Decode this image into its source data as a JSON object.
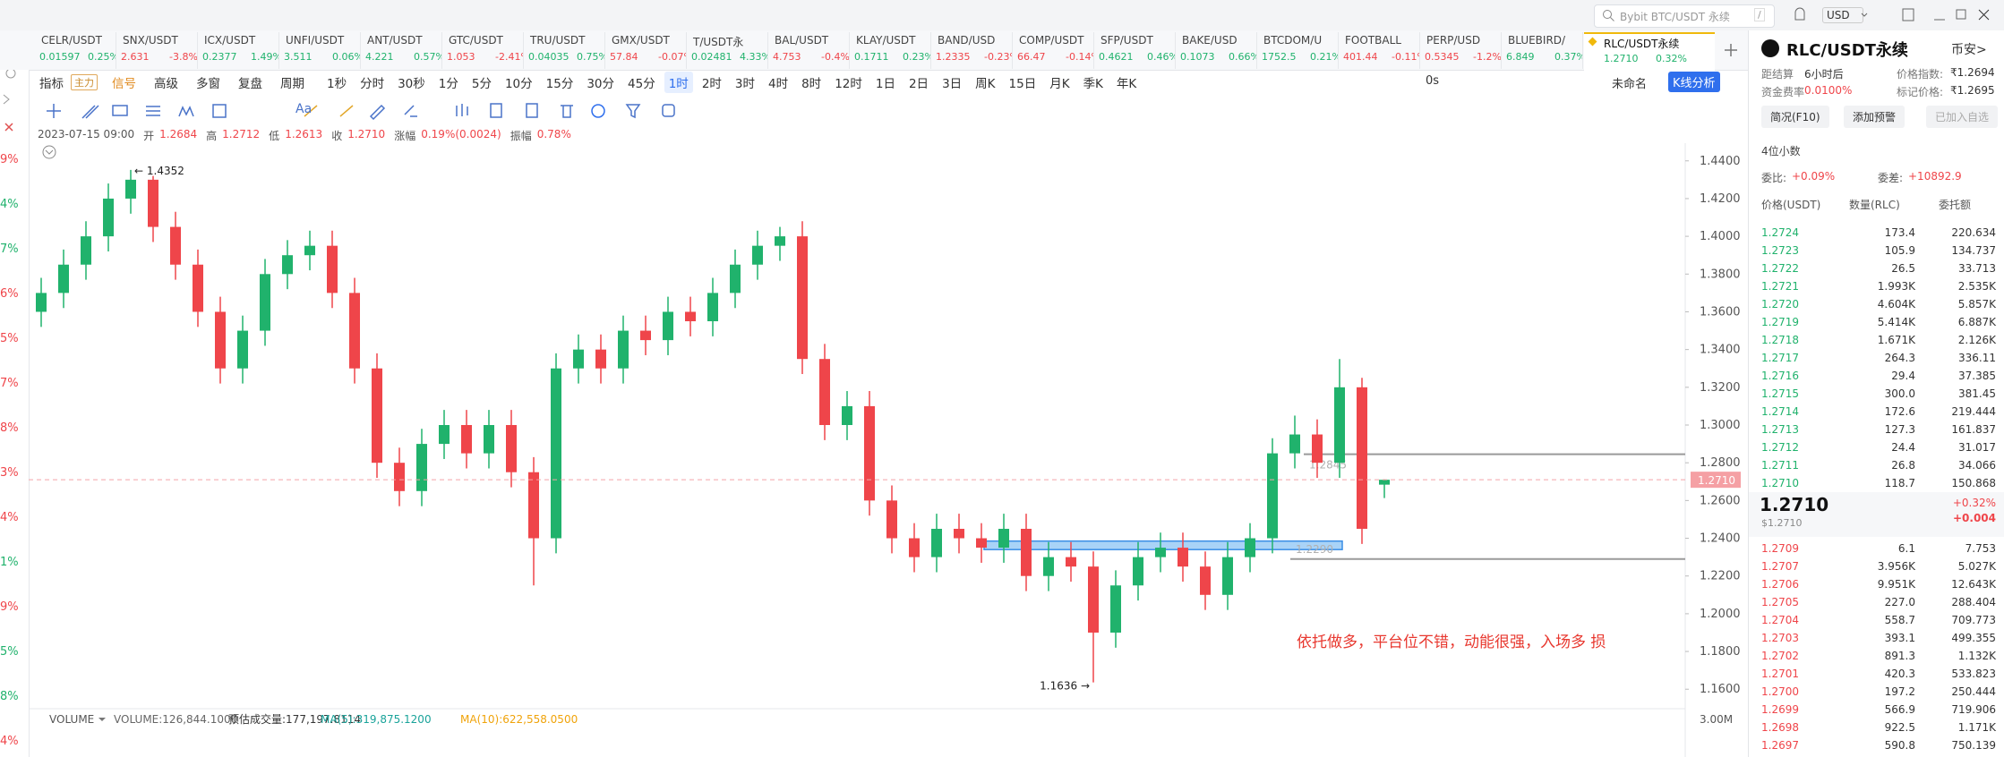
{
  "colors": {
    "up": "#20b26c",
    "down": "#ef454a"
  },
  "top_bar": {
    "search": "Bybit BTC/USDT 永续",
    "search_key": "/",
    "currency": "USD"
  },
  "tickers": [
    {
      "name": "CELR/USDT",
      "price": "0.01597",
      "change": "0.25%",
      "trend": "up"
    },
    {
      "name": "SNX/USDT",
      "price": "2.631",
      "change": "-3.8%",
      "trend": "down"
    },
    {
      "name": "ICX/USDT",
      "price": "0.2377",
      "change": "1.49%",
      "trend": "up"
    },
    {
      "name": "UNFI/USDT",
      "price": "3.511",
      "change": "0.06%",
      "trend": "up"
    },
    {
      "name": "ANT/USDT",
      "price": "4.221",
      "change": "0.57%",
      "trend": "up"
    },
    {
      "name": "GTC/USDT",
      "price": "1.053",
      "change": "-2.41%",
      "trend": "down"
    },
    {
      "name": "TRU/USDT",
      "price": "0.04035",
      "change": "0.75%",
      "trend": "up"
    },
    {
      "name": "GMX/USDT",
      "price": "57.84",
      "change": "-0.07%",
      "trend": "down"
    },
    {
      "name": "T/USDT永",
      "price": "0.02481",
      "change": "4.33%",
      "trend": "up"
    },
    {
      "name": "BAL/USDT",
      "price": "4.753",
      "change": "-0.4%",
      "trend": "down"
    },
    {
      "name": "KLAY/USDT",
      "price": "0.1711",
      "change": "0.23%",
      "trend": "up"
    },
    {
      "name": "BAND/USD",
      "price": "1.2335",
      "change": "-0.23%",
      "trend": "down"
    },
    {
      "name": "COMP/USDT",
      "price": "66.47",
      "change": "-0.14%",
      "trend": "down"
    },
    {
      "name": "SFP/USDT",
      "price": "0.4621",
      "change": "0.46%",
      "trend": "up"
    },
    {
      "name": "BAKE/USD",
      "price": "0.1073",
      "change": "0.66%",
      "trend": "up"
    },
    {
      "name": "BTCDOM/U",
      "price": "1752.5",
      "change": "0.21%",
      "trend": "up"
    },
    {
      "name": "FOOTBALL",
      "price": "401.44",
      "change": "-0.11%",
      "trend": "down"
    },
    {
      "name": "PERP/USD",
      "price": "0.5345",
      "change": "-1.2%",
      "trend": "down"
    },
    {
      "name": "BLUEBIRD/",
      "price": "6.849",
      "change": "0.37%",
      "trend": "up"
    },
    {
      "name": "RLC/USDT永续",
      "price": "1.2710",
      "change": "0.32%",
      "trend": "up"
    }
  ],
  "active_ticker_index": 19,
  "toolbar": {
    "tools": [
      "指标",
      "主力",
      "信号",
      "高级",
      "多窗",
      "复盘",
      "周期"
    ],
    "periods": [
      "1秒",
      "分时",
      "30秒",
      "1分",
      "5分",
      "10分",
      "15分",
      "30分",
      "45分",
      "1时",
      "2时",
      "3时",
      "4时",
      "8时",
      "12时",
      "1日",
      "2日",
      "3日",
      "周K",
      "15日",
      "月K",
      "季K",
      "年K"
    ],
    "active_period_index": 9,
    "countdown": "0s",
    "layout_name": "未命名",
    "analysis": "K线分析",
    "font_tool": "Aa"
  },
  "left_strip": [
    {
      "text": "9%",
      "trend": "down"
    },
    {
      "text": "4%",
      "trend": "up"
    },
    {
      "text": "7%",
      "trend": "up"
    },
    {
      "text": "6%",
      "trend": "down"
    },
    {
      "text": "5%",
      "trend": "down"
    },
    {
      "text": "7%",
      "trend": "down"
    },
    {
      "text": "8%",
      "trend": "down"
    },
    {
      "text": "3%",
      "trend": "down"
    },
    {
      "text": "4%",
      "trend": "down"
    },
    {
      "text": "1%",
      "trend": "up"
    },
    {
      "text": "9%",
      "trend": "down"
    },
    {
      "text": "5%",
      "trend": "up"
    },
    {
      "text": "8%",
      "trend": "up"
    },
    {
      "text": "4%",
      "trend": "down"
    }
  ],
  "chart_data": {
    "type": "candlestick",
    "info": {
      "time": "2023-07-15 09:00",
      "fields": [
        {
          "label": "开",
          "value": "1.2684"
        },
        {
          "label": "高",
          "value": "1.2712"
        },
        {
          "label": "低",
          "value": "1.2613"
        },
        {
          "label": "收",
          "value": "1.2710"
        },
        {
          "label": "涨幅",
          "value": "0.19%(0.0024)"
        },
        {
          "label": "振幅",
          "value": "0.78%"
        }
      ]
    },
    "open": [
      1.36,
      1.37,
      1.385,
      1.4,
      1.42,
      1.43,
      1.405,
      1.385,
      1.36,
      1.33,
      1.35,
      1.38,
      1.39,
      1.395,
      1.37,
      1.33,
      1.28,
      1.265,
      1.29,
      1.3,
      1.285,
      1.3,
      1.275,
      1.24,
      1.33,
      1.34,
      1.33,
      1.35,
      1.345,
      1.36,
      1.355,
      1.37,
      1.385,
      1.395,
      1.4,
      1.335,
      1.3,
      1.31,
      1.26,
      1.24,
      1.23,
      1.245,
      1.24,
      1.235,
      1.245,
      1.22,
      1.23,
      1.225,
      1.19,
      1.215,
      1.23,
      1.235,
      1.225,
      1.21,
      1.23,
      1.24,
      1.285,
      1.295,
      1.28,
      1.32,
      1.2684
    ],
    "high": [
      1.378,
      1.393,
      1.408,
      1.428,
      1.4352,
      1.432,
      1.413,
      1.393,
      1.368,
      1.358,
      1.388,
      1.398,
      1.403,
      1.403,
      1.378,
      1.338,
      1.288,
      1.298,
      1.308,
      1.308,
      1.308,
      1.308,
      1.283,
      1.338,
      1.348,
      1.348,
      1.358,
      1.358,
      1.368,
      1.368,
      1.378,
      1.393,
      1.403,
      1.405,
      1.408,
      1.343,
      1.318,
      1.318,
      1.268,
      1.248,
      1.253,
      1.253,
      1.248,
      1.253,
      1.253,
      1.238,
      1.238,
      1.233,
      1.223,
      1.238,
      1.243,
      1.243,
      1.233,
      1.238,
      1.248,
      1.293,
      1.305,
      1.303,
      1.335,
      1.325,
      1.2712
    ],
    "low": [
      1.352,
      1.362,
      1.377,
      1.392,
      1.412,
      1.397,
      1.377,
      1.352,
      1.322,
      1.322,
      1.342,
      1.372,
      1.382,
      1.362,
      1.322,
      1.272,
      1.257,
      1.257,
      1.282,
      1.277,
      1.277,
      1.267,
      1.215,
      1.232,
      1.322,
      1.322,
      1.322,
      1.337,
      1.337,
      1.347,
      1.347,
      1.362,
      1.377,
      1.387,
      1.327,
      1.292,
      1.292,
      1.252,
      1.232,
      1.222,
      1.222,
      1.232,
      1.227,
      1.227,
      1.212,
      1.212,
      1.217,
      1.1636,
      1.182,
      1.207,
      1.222,
      1.217,
      1.202,
      1.202,
      1.222,
      1.232,
      1.277,
      1.272,
      1.272,
      1.237,
      1.2613
    ],
    "close": [
      1.37,
      1.385,
      1.4,
      1.42,
      1.43,
      1.405,
      1.385,
      1.36,
      1.33,
      1.35,
      1.38,
      1.39,
      1.395,
      1.37,
      1.33,
      1.28,
      1.265,
      1.29,
      1.3,
      1.285,
      1.3,
      1.275,
      1.24,
      1.33,
      1.34,
      1.33,
      1.35,
      1.345,
      1.36,
      1.355,
      1.37,
      1.385,
      1.395,
      1.4,
      1.335,
      1.3,
      1.31,
      1.26,
      1.24,
      1.23,
      1.245,
      1.24,
      1.235,
      1.245,
      1.22,
      1.23,
      1.225,
      1.19,
      1.215,
      1.23,
      1.235,
      1.225,
      1.21,
      1.23,
      1.24,
      1.285,
      1.295,
      1.28,
      1.32,
      1.245,
      1.271
    ],
    "up_color": "#20b26c",
    "down_color": "#ef454a",
    "ylim": [
      1.153,
      1.447
    ],
    "yticks": [
      {
        "value": 1.44,
        "label": "1.4400"
      },
      {
        "value": 1.42,
        "label": "1.4200"
      },
      {
        "value": 1.4,
        "label": "1.4000"
      },
      {
        "value": 1.38,
        "label": "1.3800"
      },
      {
        "value": 1.36,
        "label": "1.3600"
      },
      {
        "value": 1.34,
        "label": "1.3400"
      },
      {
        "value": 1.32,
        "label": "1.3200"
      },
      {
        "value": 1.3,
        "label": "1.3000"
      },
      {
        "value": 1.28,
        "label": "1.2800"
      },
      {
        "value": 1.26,
        "label": "1.2600"
      },
      {
        "value": 1.24,
        "label": "1.2400"
      },
      {
        "value": 1.22,
        "label": "1.2200"
      },
      {
        "value": 1.2,
        "label": "1.2000"
      },
      {
        "value": 1.18,
        "label": "1.1800"
      },
      {
        "value": 1.16,
        "label": "1.1600"
      }
    ],
    "grid": false,
    "last_price": {
      "value": 1.271,
      "label": "1.2710"
    },
    "high_label": "← 1.4352",
    "low_label": "1.1636 →",
    "levels": [
      {
        "value": 1.2845,
        "label": "1.2845"
      },
      {
        "value": 1.229,
        "label": "1.2290"
      }
    ],
    "zone": {
      "low": 1.234,
      "high": 1.2385
    },
    "annotation": "依托做多，平台位不错，动能很强，入场多 损",
    "volume": {
      "name": "VOLUME",
      "items": [
        {
          "text": "VOLUME:126,844.1000",
          "color": "#666666"
        },
        {
          "text": "预估成交量:177,197.8114",
          "color": "#333333"
        },
        {
          "text": "MA(5):319,875.1200",
          "color": "#1aa39a"
        },
        {
          "text": "MA(10):622,558.0500",
          "color": "#f0a30a"
        }
      ],
      "axis_label": "3.00M"
    }
  },
  "panel": {
    "symbol": "RLC/USDT永续",
    "exchange": "币安>",
    "left_rows": [
      {
        "label": "距结算",
        "value": "6小时后"
      },
      {
        "label": "资金费率",
        "value": "0.0100%"
      }
    ],
    "right_rows": [
      {
        "label": "价格指数:",
        "value": "₹1.2694"
      },
      {
        "label": "标记价格:",
        "value": "₹1.2695"
      }
    ],
    "buttons": [
      "简况(F10)",
      "添加预警",
      "已加入自选"
    ],
    "decimals": "4位小数",
    "ratio": {
      "label": "委比:",
      "value": "+0.09%"
    },
    "diff": {
      "label": "委差:",
      "value": "+10892.9"
    },
    "columns": [
      "价格(USDT)",
      "数量(RLC)",
      "委托额"
    ],
    "ask_trend": "up",
    "bid_trend": "down",
    "asks": [
      [
        "1.2724",
        "173.4",
        "220.634"
      ],
      [
        "1.2723",
        "105.9",
        "134.737"
      ],
      [
        "1.2722",
        "26.5",
        "33.713"
      ],
      [
        "1.2721",
        "1.993K",
        "2.535K"
      ],
      [
        "1.2720",
        "4.604K",
        "5.857K"
      ],
      [
        "1.2719",
        "5.414K",
        "6.887K"
      ],
      [
        "1.2718",
        "1.671K",
        "2.126K"
      ],
      [
        "1.2717",
        "264.3",
        "336.11"
      ],
      [
        "1.2716",
        "29.4",
        "37.385"
      ],
      [
        "1.2715",
        "300.0",
        "381.45"
      ],
      [
        "1.2714",
        "172.6",
        "219.444"
      ],
      [
        "1.2713",
        "127.3",
        "161.837"
      ],
      [
        "1.2712",
        "24.4",
        "31.017"
      ],
      [
        "1.2711",
        "26.8",
        "34.066"
      ],
      [
        "1.2710",
        "118.7",
        "150.868"
      ]
    ],
    "mid": {
      "price": "1.2710",
      "usd": "$1.2710",
      "change": "+0.32%",
      "delta": "+0.004"
    },
    "bids": [
      [
        "1.2709",
        "6.1",
        "7.753"
      ],
      [
        "1.2707",
        "3.956K",
        "5.027K"
      ],
      [
        "1.2706",
        "9.951K",
        "12.643K"
      ],
      [
        "1.2705",
        "227.0",
        "288.404"
      ],
      [
        "1.2704",
        "558.7",
        "709.773"
      ],
      [
        "1.2703",
        "393.1",
        "499.355"
      ],
      [
        "1.2702",
        "891.3",
        "1.132K"
      ],
      [
        "1.2701",
        "420.3",
        "533.823"
      ],
      [
        "1.2700",
        "197.2",
        "250.444"
      ],
      [
        "1.2699",
        "566.9",
        "719.906"
      ],
      [
        "1.2698",
        "922.5",
        "1.171K"
      ],
      [
        "1.2697",
        "590.8",
        "750.139"
      ]
    ]
  }
}
